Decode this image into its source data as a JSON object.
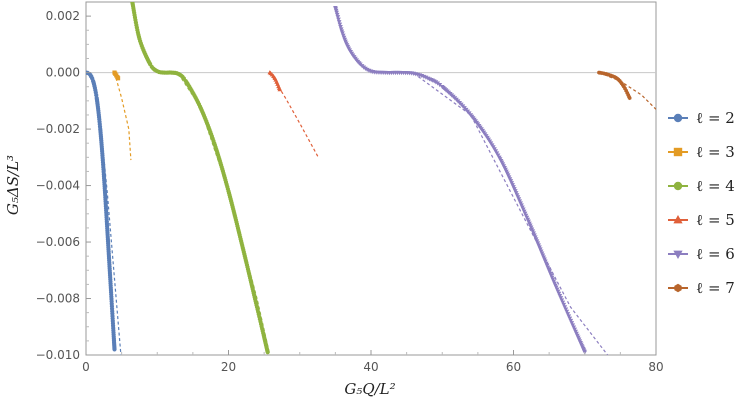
{
  "chart_data": {
    "type": "scatter",
    "xlabel": "G₅Q/L²",
    "ylabel": "G₅ΔS/L³",
    "xlim": [
      0,
      80
    ],
    "ylim": [
      -0.01,
      0.0025
    ],
    "x_ticks": [
      0,
      20,
      40,
      60,
      80
    ],
    "x_tick_labels": [
      "0",
      "20",
      "40",
      "60",
      "80"
    ],
    "y_ticks": [
      0.002,
      0,
      -0.002,
      -0.004,
      -0.006,
      -0.008,
      -0.01
    ],
    "y_tick_labels": [
      "0.002",
      "0.000",
      "−0.002",
      "−0.004",
      "−0.006",
      "−0.008",
      "−0.010"
    ],
    "grid": false,
    "reference_line_y": 0,
    "legend_position": "right",
    "series": [
      {
        "name": "ℓ = 2",
        "color": "#5a7fb8",
        "marker": "circle",
        "points": [
          [
            0,
            0
          ],
          [
            0.5,
            -5e-05
          ],
          [
            1,
            -0.0003
          ],
          [
            1.5,
            -0.0009
          ],
          [
            2,
            -0.002
          ],
          [
            2.5,
            -0.0036
          ],
          [
            3,
            -0.0056
          ],
          [
            3.5,
            -0.0077
          ],
          [
            4,
            -0.0098
          ]
        ],
        "fit": [
          [
            0,
            0
          ],
          [
            1,
            -0.0003
          ],
          [
            2,
            -0.0017
          ],
          [
            3,
            -0.0043
          ],
          [
            4,
            -0.0073
          ],
          [
            4.9,
            -0.01
          ]
        ]
      },
      {
        "name": "ℓ = 3",
        "color": "#e39b24",
        "marker": "square",
        "points": [
          [
            4,
            0
          ],
          [
            4.5,
            -0.0002
          ]
        ],
        "fit": [
          [
            4,
            0
          ],
          [
            5,
            -0.0009
          ],
          [
            6,
            -0.002
          ],
          [
            6.3,
            -0.0031
          ]
        ]
      },
      {
        "name": "ℓ = 4",
        "color": "#8fb33f",
        "marker": "circle",
        "points": [
          [
            6.5,
            0.0025
          ],
          [
            7.5,
            0.0012
          ],
          [
            9,
            0.0003
          ],
          [
            10,
            5e-05
          ],
          [
            11,
            0
          ],
          [
            12,
            0
          ],
          [
            13,
            -5e-05
          ],
          [
            14,
            -0.0003
          ],
          [
            16,
            -0.0012
          ],
          [
            18,
            -0.0025
          ],
          [
            20,
            -0.0042
          ],
          [
            22,
            -0.0062
          ],
          [
            24,
            -0.0083
          ],
          [
            25.5,
            -0.0099
          ]
        ],
        "fit": [
          [
            13,
            -5e-05
          ],
          [
            16,
            -0.0012
          ],
          [
            20,
            -0.0042
          ],
          [
            24,
            -0.008
          ],
          [
            25.8,
            -0.01
          ]
        ]
      },
      {
        "name": "ℓ = 5",
        "color": "#e0603a",
        "marker": "triangle-up",
        "points": [
          [
            25.8,
            0
          ],
          [
            26.5,
            -0.0002
          ],
          [
            27.2,
            -0.0006
          ]
        ],
        "fit": [
          [
            25.8,
            0
          ],
          [
            28,
            -0.0009
          ],
          [
            30,
            -0.0018
          ],
          [
            32.6,
            -0.003
          ]
        ]
      },
      {
        "name": "ℓ = 6",
        "color": "#8c7ec0",
        "marker": "triangle-down",
        "points": [
          [
            35,
            0.0023
          ],
          [
            36,
            0.0014
          ],
          [
            37,
            0.0008
          ],
          [
            38.5,
            0.0003
          ],
          [
            40,
            5e-05
          ],
          [
            42,
            0
          ],
          [
            44,
            0
          ],
          [
            46,
            -3e-05
          ],
          [
            48,
            -0.0002
          ],
          [
            50,
            -0.0005
          ],
          [
            54,
            -0.0015
          ],
          [
            58,
            -0.003
          ],
          [
            62,
            -0.0052
          ],
          [
            66,
            -0.0076
          ],
          [
            70,
            -0.0099
          ]
        ],
        "fit": [
          [
            46,
            -3e-05
          ],
          [
            54,
            -0.0015
          ],
          [
            62,
            -0.0054
          ],
          [
            68,
            -0.0083
          ],
          [
            73.2,
            -0.01
          ]
        ]
      },
      {
        "name": "ℓ = 7",
        "color": "#b8652c",
        "marker": "hexagon",
        "points": [
          [
            72,
            0
          ],
          [
            73,
            -5e-05
          ],
          [
            74.5,
            -0.0002
          ],
          [
            75.5,
            -0.0005
          ],
          [
            76.3,
            -0.0009
          ]
        ],
        "fit": [
          [
            72,
            0
          ],
          [
            75,
            -0.0003
          ],
          [
            78,
            -0.0008
          ],
          [
            80,
            -0.0013
          ]
        ]
      }
    ]
  }
}
